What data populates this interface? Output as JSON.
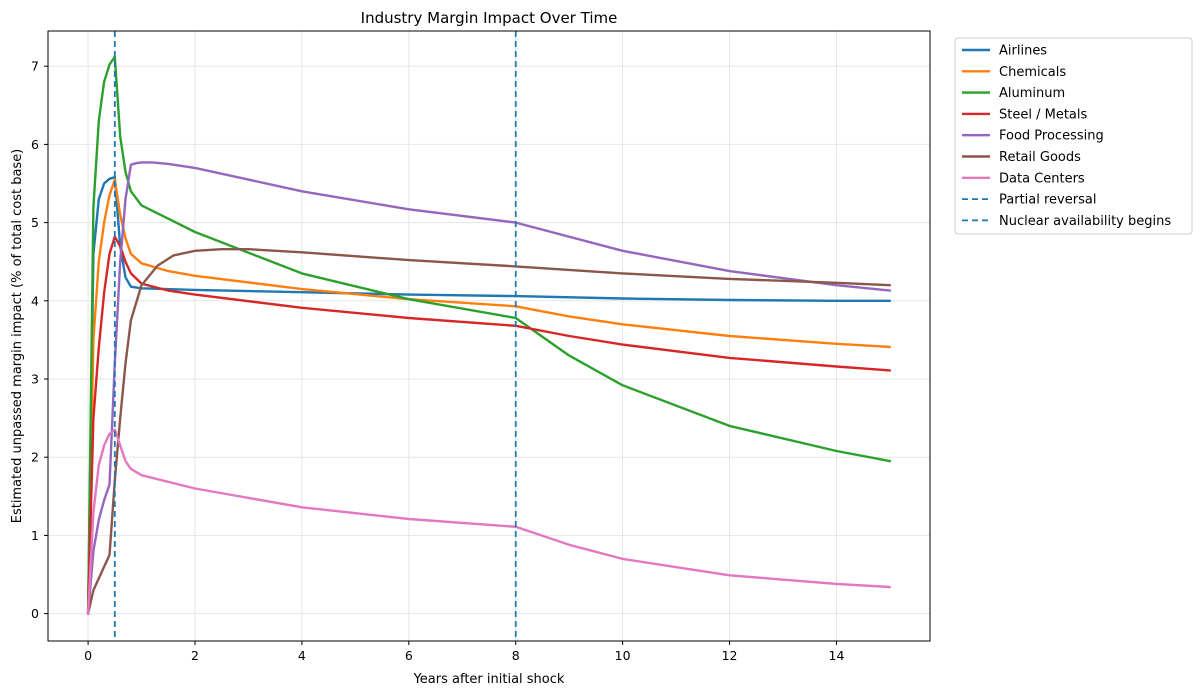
{
  "chart_data": {
    "type": "line",
    "title": "Industry Margin Impact Over Time",
    "xlabel": "Years after initial shock",
    "ylabel": "Estimated unpassed margin impact (% of total cost base)",
    "xlim": [
      -0.75,
      15.75
    ],
    "ylim": [
      -0.35,
      7.45
    ],
    "xticks": [
      0,
      2,
      4,
      6,
      8,
      10,
      12,
      14
    ],
    "yticks": [
      0,
      1,
      2,
      3,
      4,
      5,
      6,
      7
    ],
    "grid": true,
    "legend_position": "outside-top-right",
    "series": [
      {
        "name": "Airlines",
        "color": "#1f77b4",
        "x": [
          0,
          0.1,
          0.2,
          0.3,
          0.4,
          0.5,
          0.6,
          0.7,
          0.8,
          1,
          2,
          4,
          6,
          8,
          10,
          12,
          14,
          15
        ],
        "y": [
          0,
          4.6,
          5.3,
          5.5,
          5.56,
          5.58,
          4.7,
          4.3,
          4.18,
          4.16,
          4.14,
          4.11,
          4.08,
          4.06,
          4.03,
          4.01,
          4.0,
          4.0
        ]
      },
      {
        "name": "Chemicals",
        "color": "#ff7f0e",
        "x": [
          0,
          0.1,
          0.2,
          0.3,
          0.4,
          0.5,
          0.6,
          0.7,
          0.8,
          1,
          1.5,
          2,
          4,
          6,
          8,
          9,
          10,
          12,
          14,
          15
        ],
        "y": [
          0,
          3.5,
          4.5,
          5.0,
          5.35,
          5.55,
          5.1,
          4.8,
          4.6,
          4.48,
          4.38,
          4.32,
          4.15,
          4.02,
          3.93,
          3.8,
          3.7,
          3.55,
          3.45,
          3.41
        ]
      },
      {
        "name": "Aluminum",
        "color": "#2ca02c",
        "x": [
          0,
          0.1,
          0.2,
          0.3,
          0.4,
          0.5,
          0.6,
          0.7,
          0.8,
          1,
          1.5,
          2,
          4,
          6,
          8,
          9,
          10,
          12,
          14,
          15
        ],
        "y": [
          0,
          5.2,
          6.3,
          6.8,
          7.02,
          7.12,
          6.1,
          5.65,
          5.4,
          5.22,
          5.05,
          4.88,
          4.35,
          4.02,
          3.78,
          3.3,
          2.92,
          2.4,
          2.08,
          1.95
        ]
      },
      {
        "name": "Steel / Metals",
        "color": "#d62728",
        "x": [
          0,
          0.1,
          0.2,
          0.3,
          0.4,
          0.5,
          0.6,
          0.7,
          0.8,
          1,
          1.5,
          2,
          4,
          6,
          8,
          9,
          10,
          12,
          14,
          15
        ],
        "y": [
          0,
          2.5,
          3.4,
          4.1,
          4.6,
          4.82,
          4.7,
          4.5,
          4.35,
          4.22,
          4.13,
          4.08,
          3.91,
          3.78,
          3.68,
          3.55,
          3.44,
          3.27,
          3.16,
          3.11
        ]
      },
      {
        "name": "Food Processing",
        "color": "#9467bd",
        "x": [
          0,
          0.1,
          0.2,
          0.3,
          0.4,
          0.5,
          0.6,
          0.7,
          0.8,
          0.9,
          1,
          1.2,
          1.5,
          2,
          4,
          6,
          8,
          10,
          12,
          14,
          15
        ],
        "y": [
          0,
          0.8,
          1.2,
          1.45,
          1.65,
          3.2,
          4.5,
          5.3,
          5.74,
          5.76,
          5.77,
          5.77,
          5.75,
          5.7,
          5.4,
          5.17,
          5.0,
          4.64,
          4.38,
          4.2,
          4.13
        ]
      },
      {
        "name": "Retail Goods",
        "color": "#8c564b",
        "x": [
          0,
          0.1,
          0.2,
          0.3,
          0.4,
          0.5,
          0.6,
          0.7,
          0.8,
          1,
          1.3,
          1.6,
          2,
          2.5,
          3,
          4,
          6,
          8,
          10,
          12,
          14,
          15
        ],
        "y": [
          0,
          0.3,
          0.45,
          0.6,
          0.75,
          1.7,
          2.5,
          3.2,
          3.75,
          4.2,
          4.45,
          4.58,
          4.64,
          4.66,
          4.66,
          4.62,
          4.52,
          4.44,
          4.35,
          4.28,
          4.23,
          4.2
        ]
      },
      {
        "name": "Data Centers",
        "color": "#e377c2",
        "x": [
          0,
          0.1,
          0.2,
          0.3,
          0.4,
          0.5,
          0.6,
          0.7,
          0.8,
          1,
          2,
          4,
          6,
          8,
          9,
          10,
          12,
          14,
          15
        ],
        "y": [
          0,
          1.3,
          1.9,
          2.15,
          2.3,
          2.35,
          2.15,
          1.95,
          1.85,
          1.77,
          1.6,
          1.36,
          1.21,
          1.11,
          0.88,
          0.7,
          0.49,
          0.38,
          0.34
        ]
      }
    ],
    "vlines": [
      {
        "name": "Partial reversal",
        "x": 0.5,
        "color": "#1f77b4",
        "style": "dashed"
      },
      {
        "name": "Nuclear availability begins",
        "x": 8,
        "color": "#1f77b4",
        "style": "dashed"
      }
    ]
  }
}
